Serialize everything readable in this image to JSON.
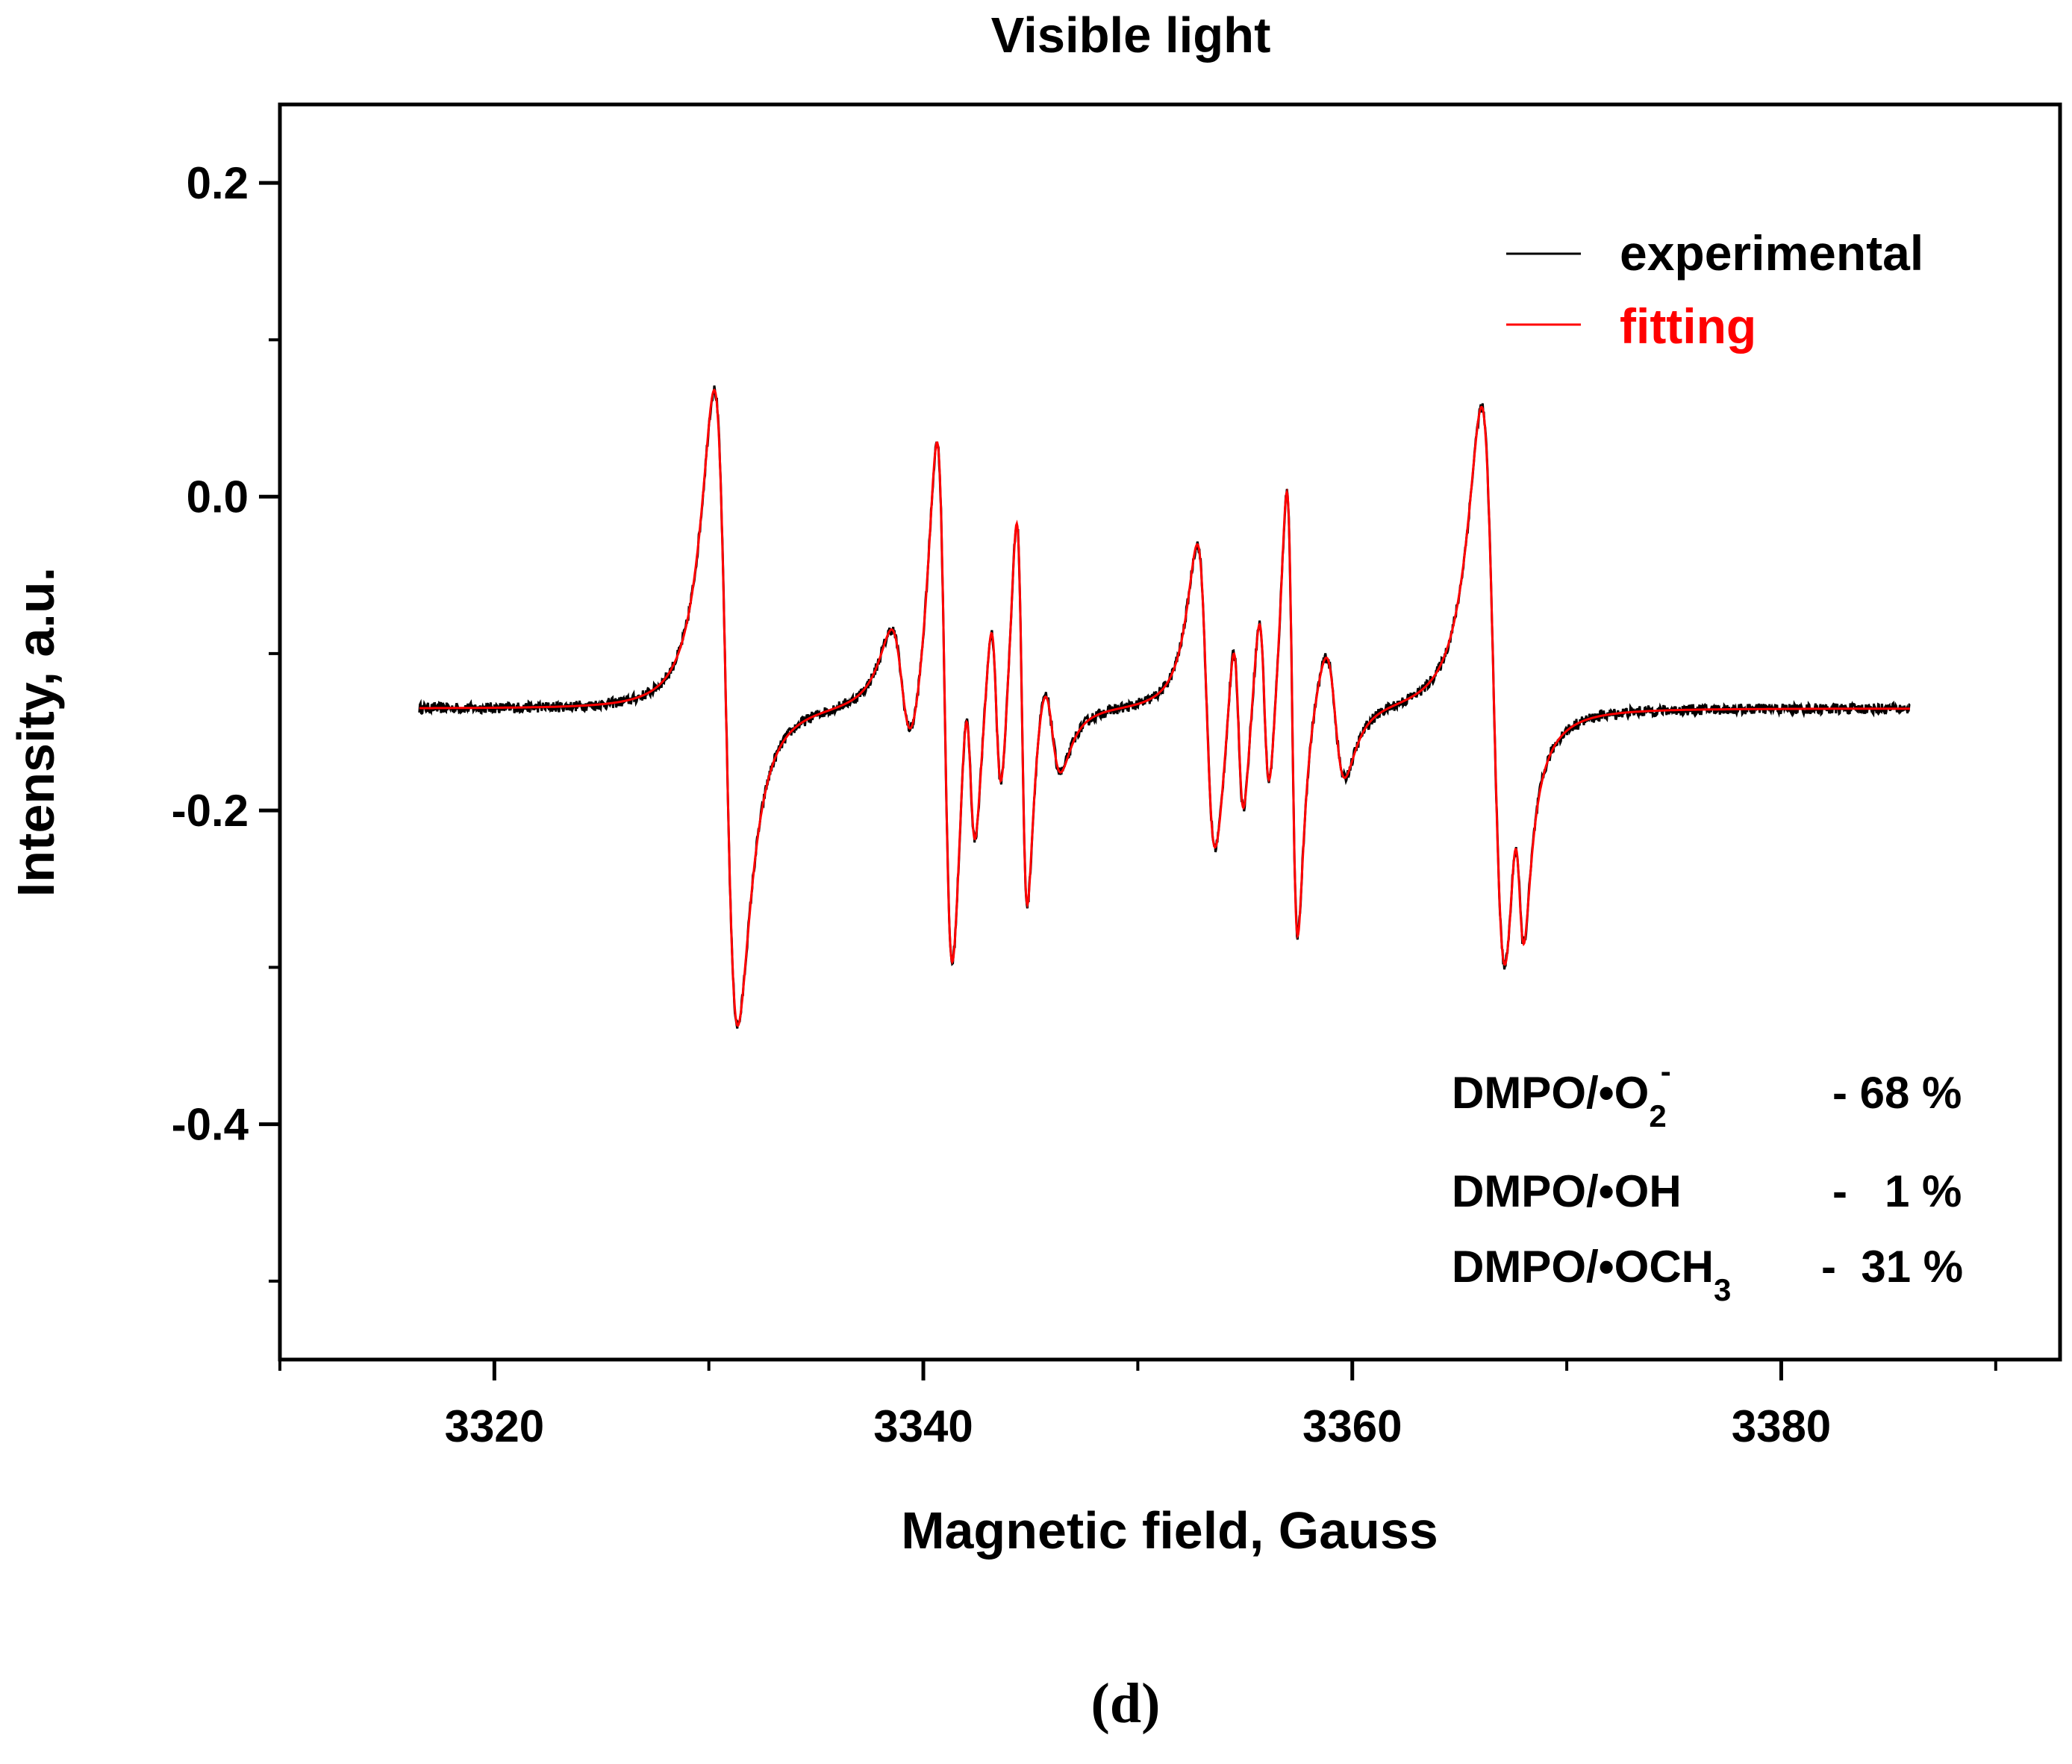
{
  "chart_data": {
    "type": "line",
    "title": "Visible light",
    "xlabel": "Magnetic field, Gauss",
    "ylabel": "Intensity, a.u.",
    "xlim": [
      3310,
      3393
    ],
    "ylim": [
      -0.55,
      0.25
    ],
    "x_ticks": [
      3320,
      3340,
      3360,
      3380
    ],
    "x_tick_labels": [
      "3320",
      "3340",
      "3360",
      "3380"
    ],
    "y_ticks": [
      0.2,
      0.0,
      -0.2,
      -0.4
    ],
    "y_tick_labels": [
      "0.2",
      "0.0",
      "-0.2",
      "-0.4"
    ],
    "x_range": [
      3316.5,
      3386
    ],
    "baseline": -0.135,
    "series": [
      {
        "name": "experimental",
        "color": "#000000",
        "noise": 0.0035
      },
      {
        "name": "fitting",
        "color": "#ff0000",
        "noise": 0
      }
    ],
    "peaks": [
      {
        "x": 3330.8,
        "amp": 0.24,
        "width": 0.95
      },
      {
        "x": 3339.0,
        "amp": 0.05,
        "width": 0.9
      },
      {
        "x": 3341.0,
        "amp": 0.21,
        "width": 0.65
      },
      {
        "x": 3342.2,
        "amp": 0.075,
        "width": 0.45
      },
      {
        "x": 3343.4,
        "amp": 0.075,
        "width": 0.45
      },
      {
        "x": 3344.6,
        "amp": 0.155,
        "width": 0.45
      },
      {
        "x": 3346.0,
        "amp": 0.04,
        "width": 0.75
      },
      {
        "x": 3353.2,
        "amp": 0.12,
        "width": 0.75
      },
      {
        "x": 3354.7,
        "amp": 0.075,
        "width": 0.45
      },
      {
        "x": 3355.9,
        "amp": 0.075,
        "width": 0.45
      },
      {
        "x": 3357.2,
        "amp": 0.175,
        "width": 0.45
      },
      {
        "x": 3359.2,
        "amp": 0.05,
        "width": 0.8
      },
      {
        "x": 3366.6,
        "amp": 0.225,
        "width": 1.0
      },
      {
        "x": 3367.8,
        "amp": 0.07,
        "width": 0.45
      }
    ],
    "legend": [
      {
        "label": "experimental",
        "color": "#000000"
      },
      {
        "label": "fitting",
        "color": "#ff0000"
      }
    ],
    "annotations": [
      {
        "species": "DMPO/•O",
        "sub": "2",
        "sup": "-",
        "value": "- 68 %"
      },
      {
        "species": "DMPO/•OH",
        "sub": "",
        "sup": "",
        "value": "-   1 %"
      },
      {
        "species": "DMPO/•OCH",
        "sub": "3",
        "sup": "",
        "value": "-  31 %"
      }
    ]
  },
  "panel_label": "(d)"
}
